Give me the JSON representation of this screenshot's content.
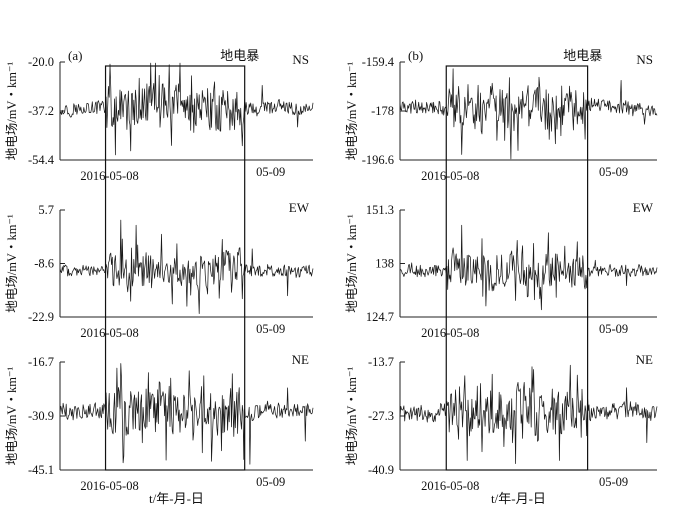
{
  "chart_data": [
    {
      "type": "line",
      "column": "(a)",
      "storm_label": "地电暴",
      "xlabel": "t/年-月-日",
      "panels": [
        {
          "component": "NS",
          "ylabel": "地电场/mV・km⁻¹",
          "yticks": [
            "-20.0",
            "-37.2",
            "-54.4"
          ],
          "ylim": [
            -54.4,
            -20.0
          ],
          "xticks": [
            "2016-05-08",
            "05-09"
          ],
          "baseline": -36.2,
          "storm_amplitude": 7.5,
          "quiet_amplitude": 2.3,
          "peaks": [
            {
              "x": 0.22,
              "y": -52.6
            },
            {
              "x": 0.28,
              "y": -51.2
            },
            {
              "x": 0.37,
              "y": -27.5
            },
            {
              "x": 0.44,
              "y": -49.3
            },
            {
              "x": 0.52,
              "y": -24.8
            },
            {
              "x": 0.61,
              "y": -27.0
            },
            {
              "x": 0.72,
              "y": -49.4
            },
            {
              "x": 0.8,
              "y": -28.2
            },
            {
              "x": 0.94,
              "y": -42.8
            }
          ]
        },
        {
          "component": "EW",
          "ylabel": "地电场/mV・km⁻¹",
          "yticks": [
            "5.7",
            "-8.6",
            "-22.9"
          ],
          "ylim": [
            -22.9,
            5.7
          ],
          "xticks": [
            "2016-05-08",
            "05-09"
          ],
          "baseline": -10.5,
          "storm_amplitude": 4.5,
          "quiet_amplitude": 1.6,
          "peaks": [
            {
              "x": 0.24,
              "y": 3.0
            },
            {
              "x": 0.3,
              "y": 1.6
            },
            {
              "x": 0.4,
              "y": -0.8
            },
            {
              "x": 0.5,
              "y": -20.0
            },
            {
              "x": 0.55,
              "y": -22.0
            },
            {
              "x": 0.66,
              "y": -5.4
            },
            {
              "x": 0.72,
              "y": -18.0
            },
            {
              "x": 0.76,
              "y": -4.7
            },
            {
              "x": 0.9,
              "y": -17.2
            }
          ]
        },
        {
          "component": "NE",
          "ylabel": "地电场/mV・km⁻¹",
          "yticks": [
            "-16.7",
            "-30.9",
            "-45.1"
          ],
          "ylim": [
            -45.1,
            -16.7
          ],
          "xticks": [
            "2016-05-08",
            "05-09"
          ],
          "baseline": -29.5,
          "storm_amplitude": 6.0,
          "quiet_amplitude": 2.0,
          "peaks": [
            {
              "x": 0.25,
              "y": -43.2
            },
            {
              "x": 0.35,
              "y": -19.5
            },
            {
              "x": 0.42,
              "y": -42.5
            },
            {
              "x": 0.51,
              "y": -19.0
            },
            {
              "x": 0.6,
              "y": -42.8
            },
            {
              "x": 0.68,
              "y": -19.8
            },
            {
              "x": 0.75,
              "y": -43.6
            },
            {
              "x": 0.9,
              "y": -23.5
            },
            {
              "x": 0.97,
              "y": -37.5
            }
          ]
        }
      ],
      "storm_window": [
        0.18,
        0.73
      ]
    },
    {
      "type": "line",
      "column": "(b)",
      "storm_label": "地电暴",
      "xlabel": "t/年-月-日",
      "panels": [
        {
          "component": "NS",
          "ylabel": "地电场/mV・km⁻¹",
          "yticks": [
            "-159.4",
            "-178",
            "-196.6"
          ],
          "ylim": [
            -196.6,
            -159.4
          ],
          "xticks": [
            "2016-05-08",
            "05-09"
          ],
          "baseline": -176.8,
          "storm_amplitude": 8.0,
          "quiet_amplitude": 2.5,
          "peaks": [
            {
              "x": 0.24,
              "y": -194.5
            },
            {
              "x": 0.36,
              "y": -167.5
            },
            {
              "x": 0.46,
              "y": -193.0
            },
            {
              "x": 0.54,
              "y": -165.2
            },
            {
              "x": 0.63,
              "y": -168.5
            },
            {
              "x": 0.72,
              "y": -188.7
            },
            {
              "x": 0.86,
              "y": -166.4
            },
            {
              "x": 0.95,
              "y": -183.0
            }
          ]
        },
        {
          "component": "EW",
          "ylabel": "地电场/mV・km⁻¹",
          "yticks": [
            "151.3",
            "138",
            "124.7"
          ],
          "ylim": [
            124.7,
            151.3
          ],
          "xticks": [
            "2016-05-08",
            "05-09"
          ],
          "baseline": 136.2,
          "storm_amplitude": 4.2,
          "quiet_amplitude": 1.5,
          "peaks": [
            {
              "x": 0.24,
              "y": 147.5
            },
            {
              "x": 0.32,
              "y": 144.2
            },
            {
              "x": 0.45,
              "y": 128.8
            },
            {
              "x": 0.52,
              "y": 143.0
            },
            {
              "x": 0.55,
              "y": 126.5
            },
            {
              "x": 0.69,
              "y": 143.4
            },
            {
              "x": 0.76,
              "y": 138.8
            },
            {
              "x": 0.88,
              "y": 132.5
            }
          ]
        },
        {
          "component": "NE",
          "ylabel": "地电场/mV・km⁻¹",
          "yticks": [
            "-13.7",
            "-27.3",
            "-40.9"
          ],
          "ylim": [
            -40.9,
            -13.7
          ],
          "xticks": [
            "2016-05-08",
            "05-09"
          ],
          "baseline": -26.2,
          "storm_amplitude": 6.0,
          "quiet_amplitude": 2.0,
          "peaks": [
            {
              "x": 0.26,
              "y": -38.5
            },
            {
              "x": 0.36,
              "y": -16.8
            },
            {
              "x": 0.45,
              "y": -39.3
            },
            {
              "x": 0.52,
              "y": -15.6
            },
            {
              "x": 0.62,
              "y": -38.5
            },
            {
              "x": 0.69,
              "y": -17.0
            },
            {
              "x": 0.88,
              "y": -20.2
            },
            {
              "x": 0.96,
              "y": -34.0
            }
          ]
        }
      ],
      "storm_window": [
        0.18,
        0.73
      ]
    }
  ]
}
